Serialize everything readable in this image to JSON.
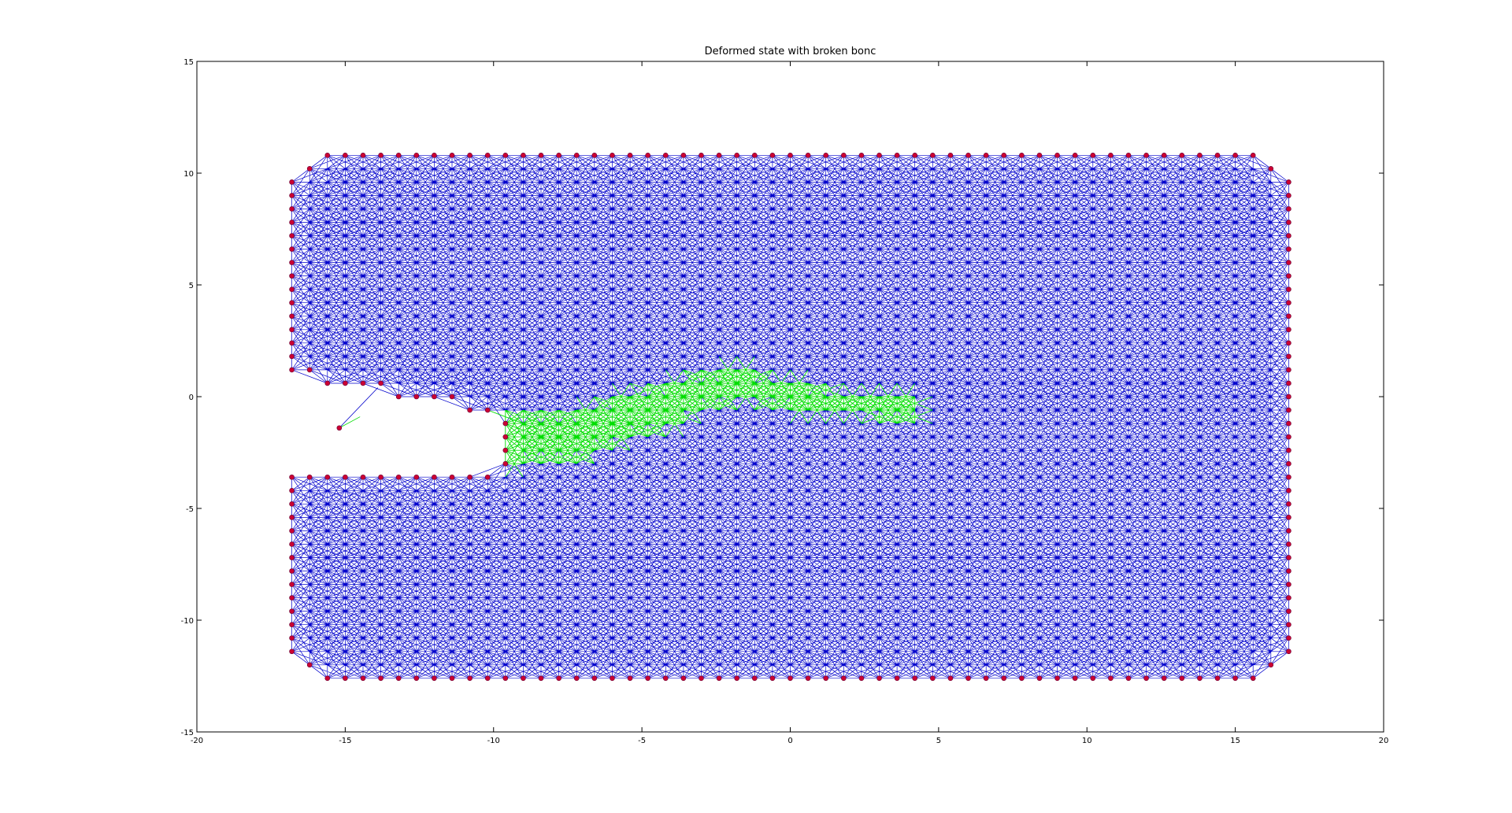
{
  "chart_data": {
    "type": "scatter",
    "title": "Deformed state with broken bonc",
    "xlabel": "",
    "ylabel": "",
    "xlim": [
      -20,
      20
    ],
    "ylim": [
      -15,
      15
    ],
    "x_ticks": [
      -20,
      -15,
      -10,
      -5,
      0,
      5,
      10,
      15,
      20
    ],
    "y_ticks": [
      -15,
      -10,
      -5,
      0,
      5,
      10,
      15
    ],
    "grid": false,
    "legend": "none",
    "body": {
      "x_range": [
        -16.8,
        16.8
      ],
      "y_range": [
        -12.6,
        10.8
      ],
      "corner_chamfer": 1.0,
      "notch": {
        "x_from": -16.8,
        "x_to": -9.8,
        "y_top": 0.9,
        "y_bottom": -3.4,
        "tip_point": [
          -15.2,
          -1.4
        ]
      }
    },
    "series": [
      {
        "mark": "bond",
        "status": "intact",
        "color": "#0000cc"
      },
      {
        "mark": "bond",
        "status": "broken",
        "color": "#00dd00",
        "crack_path": [
          [
            -15.0,
            -1.2
          ],
          [
            -11.5,
            -2.1
          ],
          [
            -7.5,
            -1.8
          ],
          [
            -4.5,
            -0.5
          ],
          [
            -2.0,
            0.6
          ],
          [
            1.0,
            -0.2
          ],
          [
            4.0,
            -0.5
          ]
        ]
      },
      {
        "mark": "node",
        "status": "boundary",
        "color": "#cc0033",
        "grid_spacing": 0.6
      }
    ]
  }
}
